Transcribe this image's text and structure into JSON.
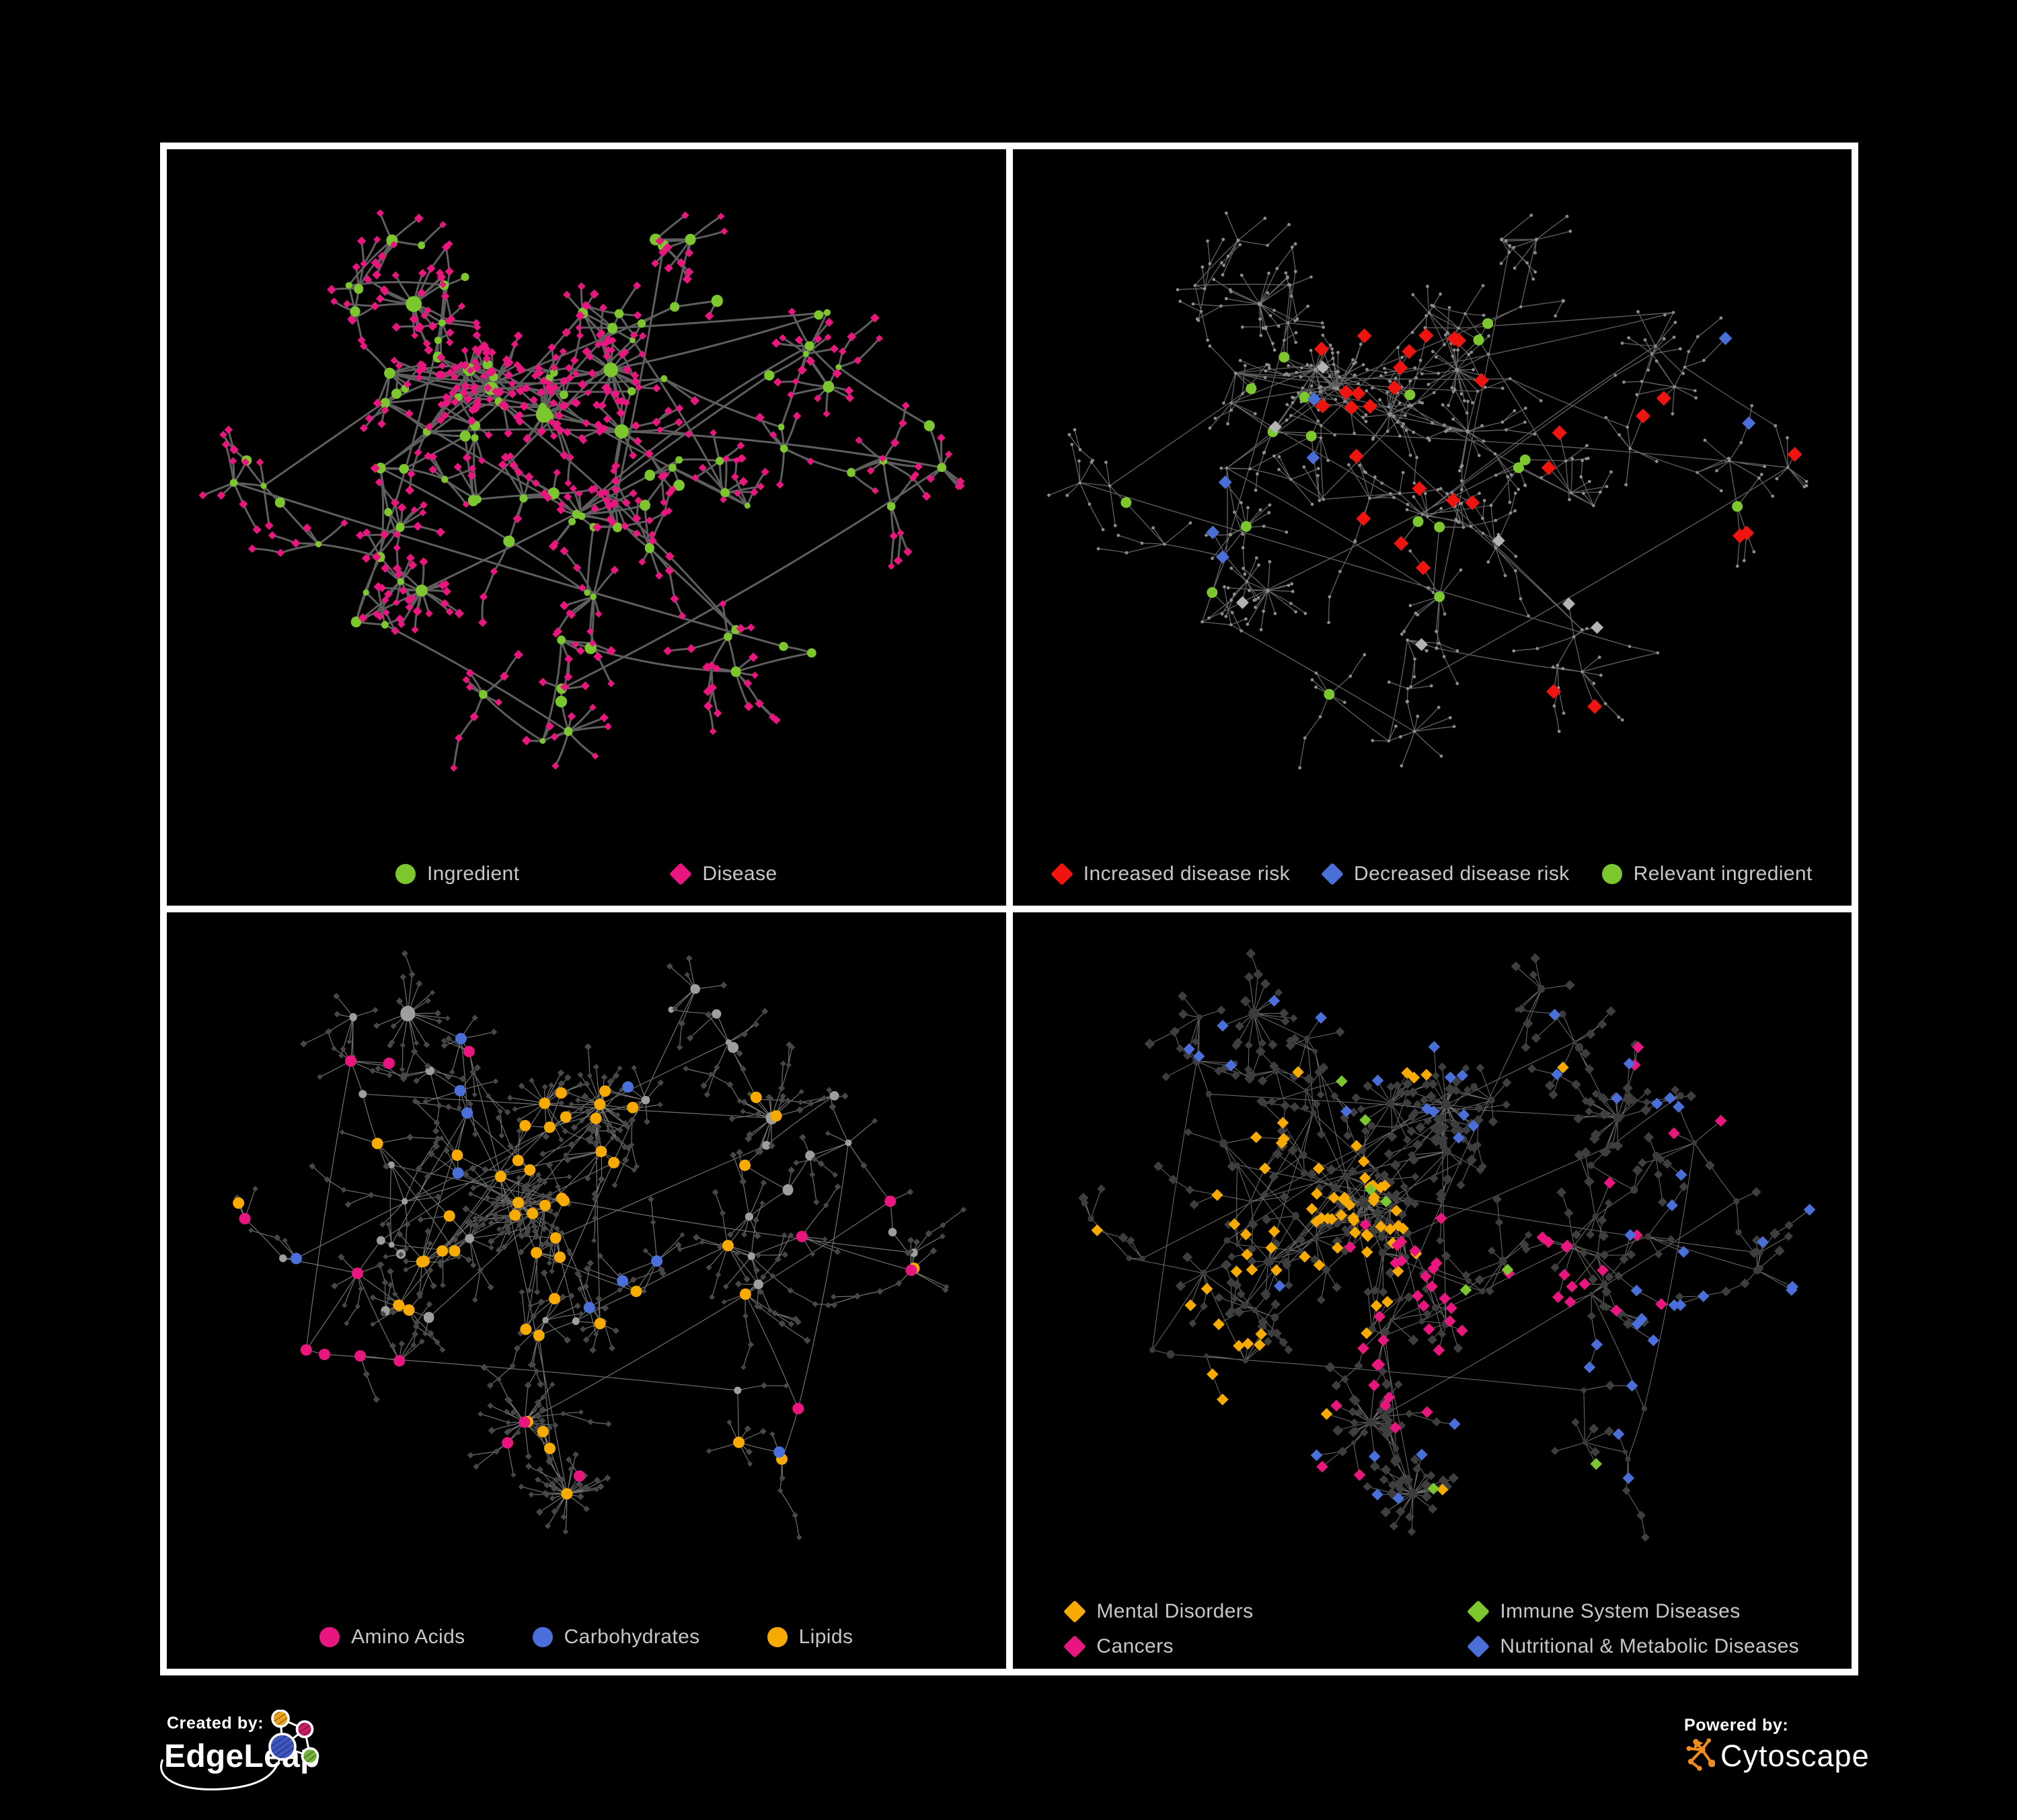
{
  "branding": {
    "created_by_label": "Created by:",
    "edgeleap_name": "EdgeLeap",
    "powered_by_label": "Powered by:",
    "cytoscape_name": "Cytoscape"
  },
  "palette": {
    "background": "#000000",
    "frame": "#ffffff",
    "legend_text": "#c7c7c7",
    "green": "#7cc62e",
    "pink": "#e9167f",
    "red": "#f01410",
    "blue": "#4a6fd8",
    "orange": "#f7ab00",
    "gray_highlight": "#b3b3b3",
    "cytoscape_orange": "#ee8c1c"
  },
  "panels": [
    {
      "name": "ingredient-disease-network",
      "legend": {
        "layout": "row",
        "items": [
          {
            "shape": "circle",
            "color": "#7cc62e",
            "label": "Ingredient"
          },
          {
            "shape": "diamond",
            "color": "#e9167f",
            "label": "Disease"
          }
        ]
      },
      "render": {
        "seed": 9001,
        "style": {
          "edge_color": "#5e5e5e",
          "edge_width": 3.0,
          "edge_opacity": 1,
          "curve": 0.14,
          "hub_color": "#7cc62e",
          "hub_scale": 1.0,
          "hub_min": 4.2,
          "leaf_shape": "diamond",
          "leaf_color": "#e9167f",
          "leaf_scale": 1.05
        },
        "highlights": []
      }
    },
    {
      "name": "disease-risk-network",
      "legend": {
        "layout": "row",
        "items": [
          {
            "shape": "diamond",
            "color": "#f01410",
            "label": "Increased disease risk"
          },
          {
            "shape": "diamond",
            "color": "#4a6fd8",
            "label": "Decreased disease risk"
          },
          {
            "shape": "circle",
            "color": "#7cc62e",
            "label": "Relevant ingredient"
          }
        ]
      },
      "render": {
        "seed": 9001,
        "style": {
          "edge_color": "#6d6d6d",
          "edge_width": 1.3,
          "edge_opacity": 0.9,
          "curve": 0.05,
          "hub_color": "#8d8d8d",
          "hub_scale": 0.3,
          "hub_min": 2.3,
          "leaf_shape": "circle",
          "leaf_color": "#8d8d8d",
          "leaf_size": 2.4
        },
        "highlights": [
          {
            "on": "leaf",
            "shape": "diamond",
            "color": "#f01410",
            "size": 11,
            "spots": [
              [
                640,
                430,
                210,
                17
              ],
              [
                420,
                370,
                110,
                3
              ],
              [
                860,
                420,
                120,
                3
              ],
              [
                1010,
                560,
                110,
                2
              ],
              [
                1160,
                520,
                80,
                1
              ],
              [
                800,
                930,
                130,
                2
              ],
              [
                560,
                640,
                110,
                2
              ]
            ]
          },
          {
            "on": "leaf",
            "shape": "diamond",
            "color": "#4a6fd8",
            "size": 10,
            "spots": [
              [
                340,
                500,
                120,
                4
              ],
              [
                430,
                430,
                80,
                1
              ],
              [
                1120,
                330,
                90,
                2
              ]
            ]
          },
          {
            "on": "leaf",
            "shape": "diamond",
            "color": "#b3b3b3",
            "size": 9.5,
            "spots": [
              [
                450,
                350,
                120,
                2
              ],
              [
                660,
                620,
                140,
                2
              ],
              [
                900,
                640,
                110,
                2
              ],
              [
                300,
                700,
                110,
                1
              ]
            ]
          },
          {
            "on": "hub",
            "shape": "circle",
            "color": "#7cc62e",
            "size": 8,
            "spots": [
              [
                620,
                430,
                260,
                10
              ],
              [
                320,
                430,
                150,
                4
              ],
              [
                200,
                620,
                130,
                2
              ],
              [
                540,
                850,
                130,
                1
              ],
              [
                1150,
                620,
                120,
                1
              ]
            ]
          }
        ]
      }
    },
    {
      "name": "nutrient-class-network",
      "legend": {
        "layout": "row",
        "items": [
          {
            "shape": "circle",
            "color": "#e9167f",
            "label": "Amino Acids"
          },
          {
            "shape": "circle",
            "color": "#4a6fd8",
            "label": "Carbohydrates"
          },
          {
            "shape": "circle",
            "color": "#f7ab00",
            "label": "Lipids"
          }
        ]
      },
      "render": {
        "seed": 7331,
        "style": {
          "edge_color": "#858585",
          "edge_width": 1.2,
          "edge_opacity": 0.85,
          "curve": 0.06,
          "hub_color": "#9e9e9e",
          "hub_scale": 0.95,
          "hub_min": 4,
          "leaf_shape": "diamond",
          "leaf_color": "#474747",
          "leaf_scale": 0.8
        },
        "highlights": [
          {
            "on": "hub",
            "shape": "circle",
            "color": "#f7ab00",
            "size": 8.5,
            "spots": [
              [
                600,
                400,
                160,
                24
              ],
              [
                480,
                560,
                130,
                8
              ],
              [
                700,
                750,
                120,
                6
              ],
              [
                870,
                420,
                150,
                4
              ],
              [
                620,
                560,
                999,
                8
              ]
            ]
          },
          {
            "on": "hub",
            "shape": "circle",
            "color": "#4a6fd8",
            "size": 8.5,
            "spots": [
              [
                610,
                390,
                140,
                7
              ],
              [
                160,
                500,
                130,
                1
              ],
              [
                900,
                800,
                160,
                1
              ],
              [
                400,
                250,
                150,
                1
              ]
            ]
          },
          {
            "on": "hub",
            "shape": "circle",
            "color": "#e9167f",
            "size": 8.5,
            "spots": [
              [
                280,
                840,
                200,
                4
              ],
              [
                620,
                960,
                180,
                3
              ],
              [
                180,
                350,
                160,
                2
              ],
              [
                980,
                330,
                180,
                2
              ],
              [
                520,
                90,
                140,
                1
              ],
              [
                1100,
                780,
                160,
                1
              ],
              [
                620,
                560,
                999,
                3
              ]
            ]
          }
        ]
      }
    },
    {
      "name": "disease-class-network",
      "legend": {
        "layout": "grid",
        "items": [
          {
            "shape": "diamond",
            "color": "#f7ab00",
            "label": "Mental Disorders"
          },
          {
            "shape": "diamond",
            "color": "#7cc62e",
            "label": "Immune System Diseases"
          },
          {
            "shape": "diamond",
            "color": "#e9167f",
            "label": "Cancers"
          },
          {
            "shape": "diamond",
            "color": "#4a6fd8",
            "label": "Nutritional & Metabolic Diseases"
          }
        ]
      },
      "render": {
        "seed": 7331,
        "style": {
          "edge_color": "#8e8e8e",
          "edge_width": 1.05,
          "edge_opacity": 0.75,
          "curve": 0.05,
          "hub_color": "#3c3c3c",
          "hub_scale": 0.7,
          "hub_min": 3.5,
          "leaf_shape": "diamond",
          "leaf_color": "#3e3e3e",
          "leaf_scale": 1.18
        },
        "highlights": [
          {
            "on": "leaf",
            "shape": "diamond",
            "color": "#f7ab00",
            "size": 8.8,
            "spots": [
              [
                400,
                500,
                200,
                58
              ],
              [
                320,
                740,
                110,
                5
              ],
              [
                620,
                120,
                130,
                3
              ],
              [
                620,
                560,
                999,
                6
              ]
            ]
          },
          {
            "on": "leaf",
            "shape": "diamond",
            "color": "#e9167f",
            "size": 8.8,
            "spots": [
              [
                680,
                610,
                180,
                34
              ],
              [
                900,
                500,
                120,
                7
              ],
              [
                1150,
                230,
                90,
                4
              ],
              [
                420,
                960,
                150,
                2
              ],
              [
                620,
                560,
                999,
                5
              ]
            ]
          },
          {
            "on": "leaf",
            "shape": "diamond",
            "color": "#4a6fd8",
            "size": 8.8,
            "spots": [
              [
                750,
                180,
                240,
                10
              ],
              [
                980,
                680,
                130,
                11
              ],
              [
                1120,
                420,
                150,
                7
              ],
              [
                520,
                950,
                170,
                5
              ],
              [
                260,
                160,
                140,
                4
              ],
              [
                1180,
                120,
                110,
                3
              ],
              [
                620,
                560,
                999,
                10
              ]
            ]
          },
          {
            "on": "leaf",
            "shape": "diamond",
            "color": "#7cc62e",
            "size": 8.8,
            "spots": [
              [
                640,
                470,
                200,
                5
              ],
              [
                780,
                880,
                160,
                2
              ],
              [
                500,
                330,
                120,
                1
              ]
            ]
          }
        ]
      }
    }
  ]
}
